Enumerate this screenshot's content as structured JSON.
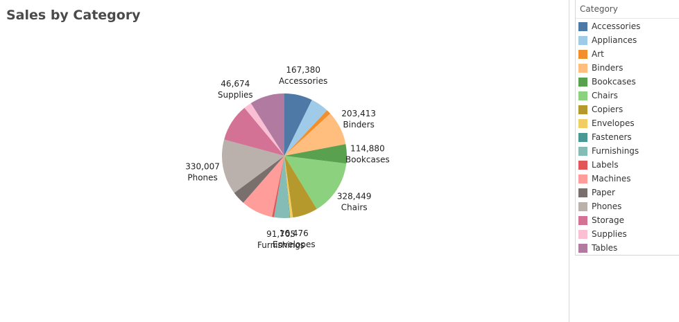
{
  "title": "Sales by Category",
  "legend": {
    "title": "Category"
  },
  "chart_data": {
    "type": "pie",
    "categories": [
      "Accessories",
      "Appliances",
      "Art",
      "Binders",
      "Bookcases",
      "Chairs",
      "Copiers",
      "Envelopes",
      "Fasteners",
      "Furnishings",
      "Labels",
      "Machines",
      "Paper",
      "Phones",
      "Storage",
      "Supplies",
      "Tables"
    ],
    "values": [
      167380,
      107532,
      27119,
      203413,
      114880,
      328449,
      149528,
      16476,
      3024,
      91705,
      12486,
      189239,
      78479,
      330007,
      223844,
      46674,
      206966
    ],
    "colors": [
      "#4e79a7",
      "#a0cbe8",
      "#f28e2b",
      "#ffbe7d",
      "#59a14f",
      "#8cd17d",
      "#b6992d",
      "#f1ce63",
      "#499894",
      "#86bcb6",
      "#e15759",
      "#ff9d9a",
      "#79706e",
      "#bab0ac",
      "#d37295",
      "#fabfd2",
      "#b07aa1"
    ],
    "data_labels": [
      {
        "category": "Accessories",
        "value": "167,380"
      },
      {
        "category": "Binders",
        "value": "203,413"
      },
      {
        "category": "Bookcases",
        "value": "114,880"
      },
      {
        "category": "Chairs",
        "value": "328,449"
      },
      {
        "category": "Envelopes",
        "value": "16,476"
      },
      {
        "category": "Furnishings",
        "value": "91,705"
      },
      {
        "category": "Phones",
        "value": "330,007"
      },
      {
        "category": "Supplies",
        "value": "46,674"
      }
    ],
    "legend_position": "right"
  }
}
